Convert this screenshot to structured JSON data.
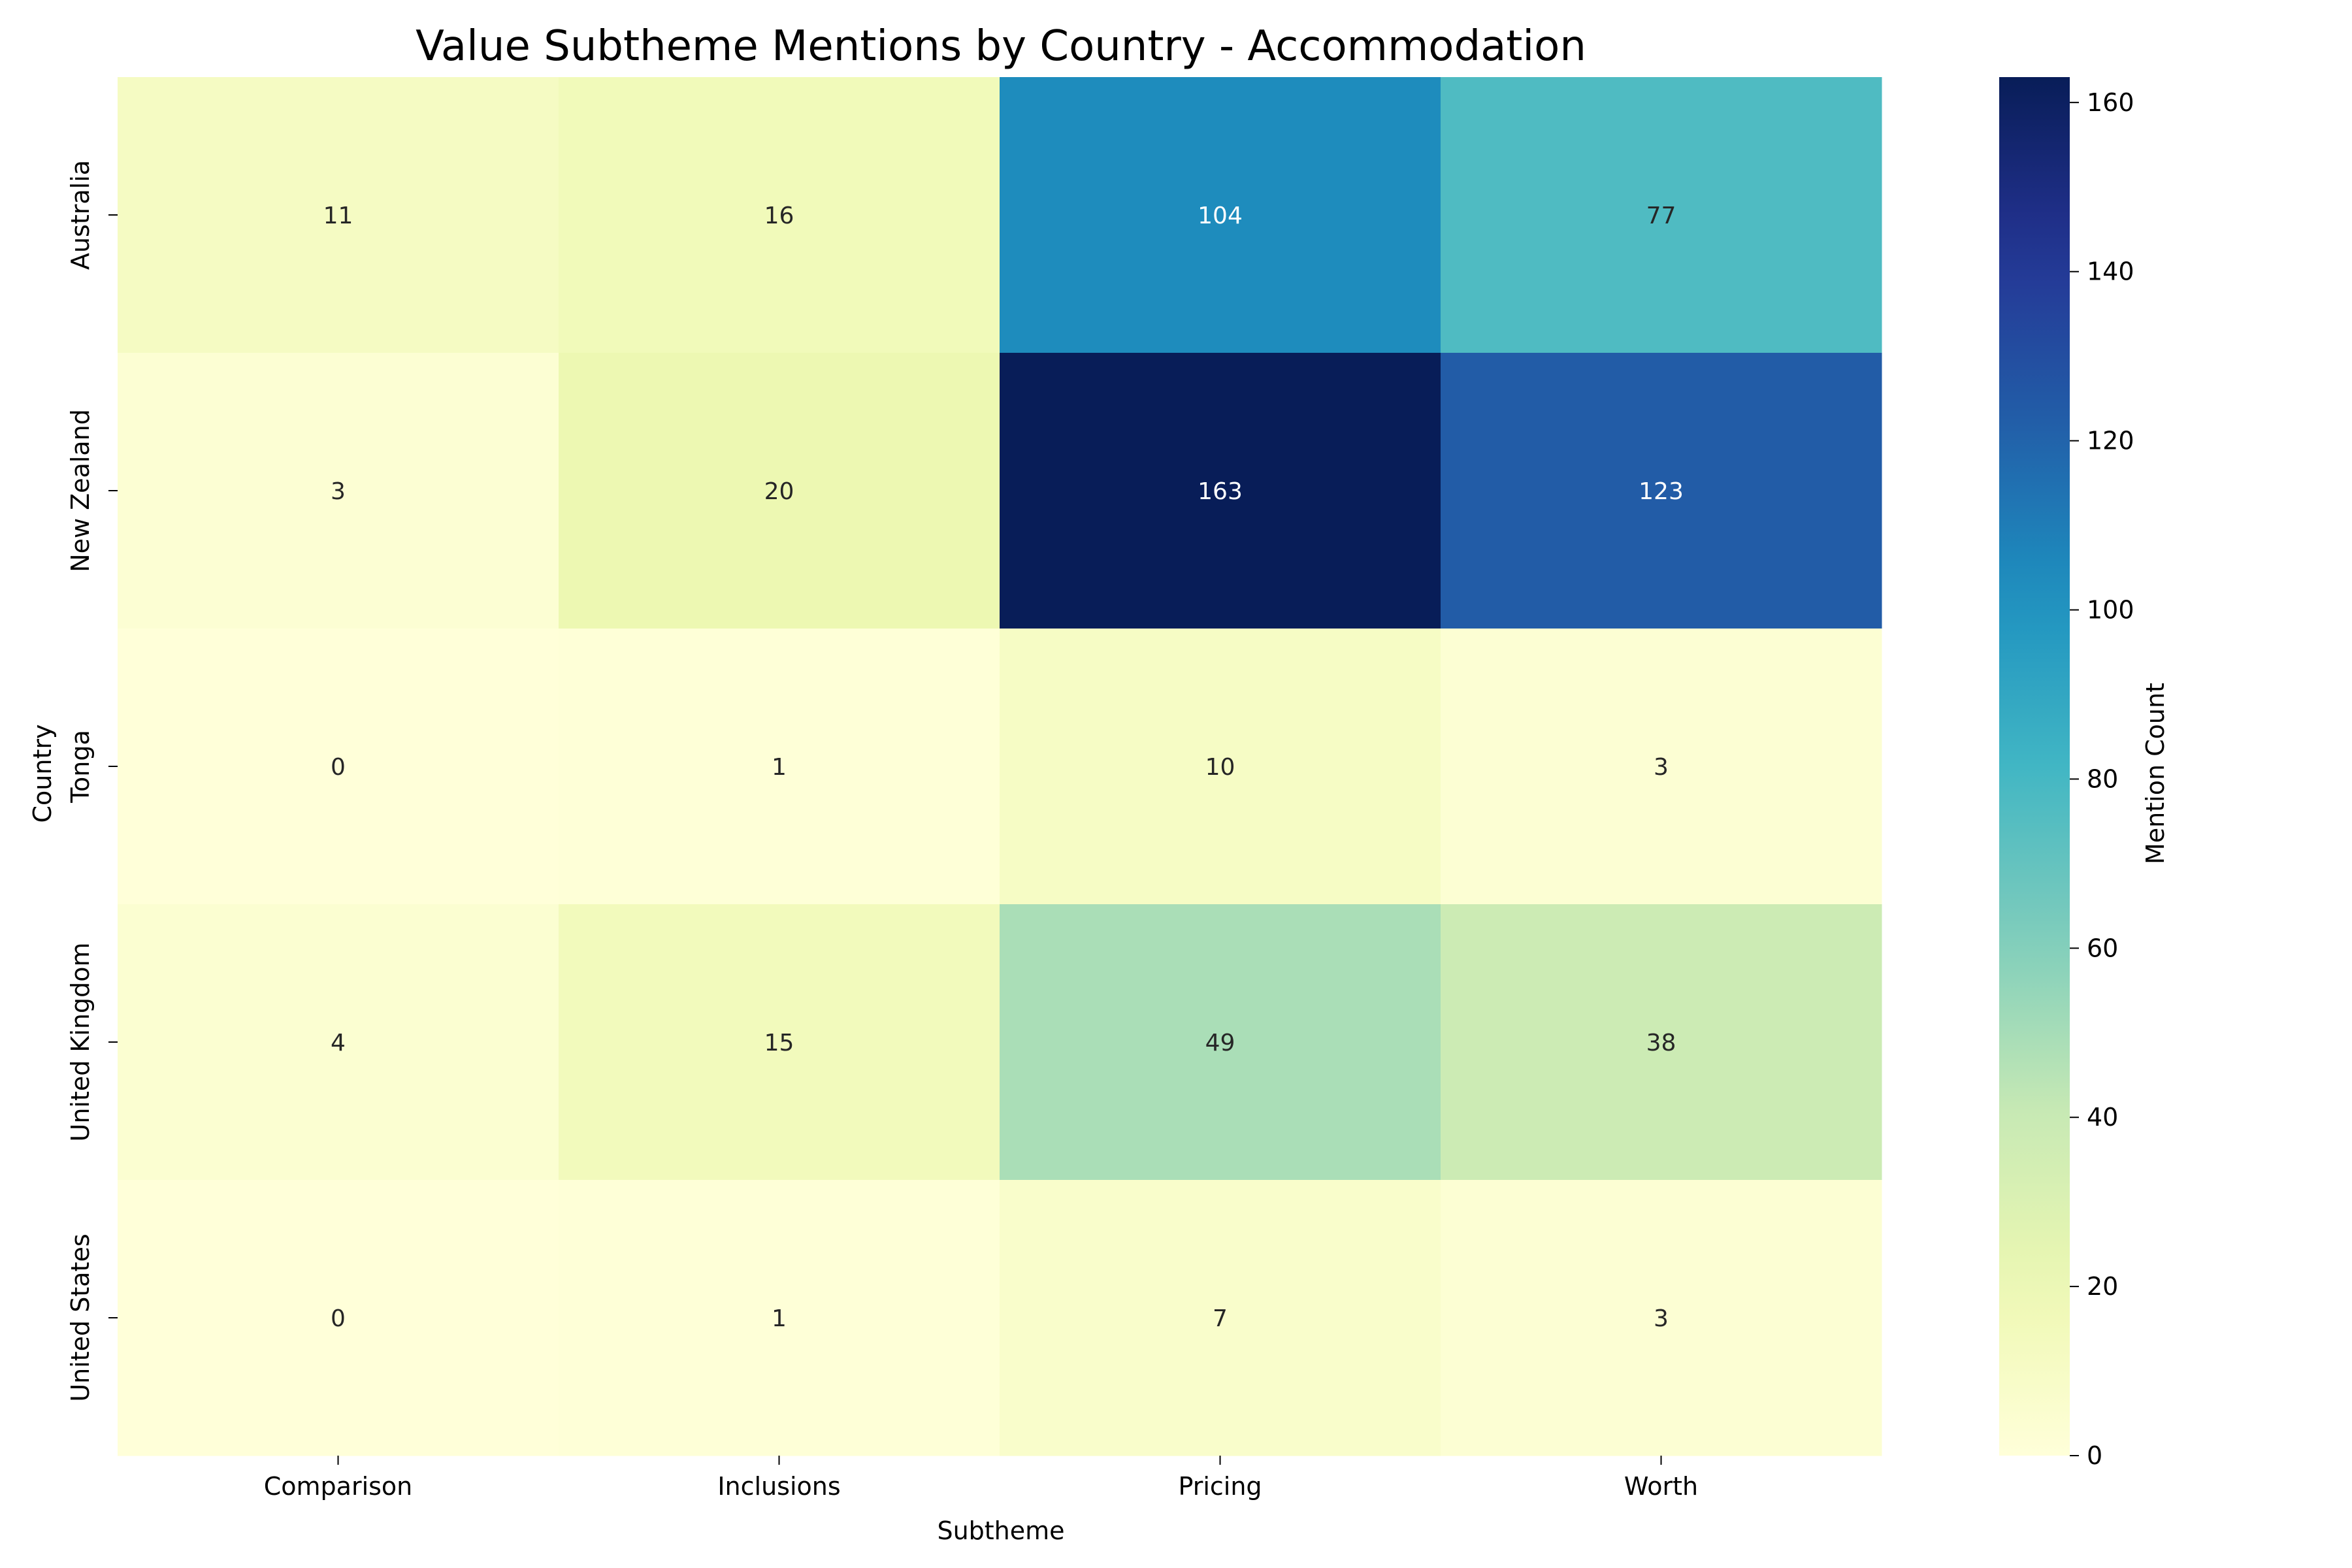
{
  "chart_data": {
    "type": "heatmap",
    "title": "Value Subtheme Mentions by Country - Accommodation",
    "xlabel": "Subtheme",
    "ylabel": "Country",
    "x_categories": [
      "Comparison",
      "Inclusions",
      "Pricing",
      "Worth"
    ],
    "y_categories": [
      "Australia",
      "New Zealand",
      "Tonga",
      "United Kingdom",
      "United States"
    ],
    "values": [
      [
        11,
        16,
        104,
        77
      ],
      [
        3,
        20,
        163,
        123
      ],
      [
        0,
        1,
        10,
        3
      ],
      [
        4,
        15,
        49,
        38
      ],
      [
        0,
        1,
        7,
        3
      ]
    ],
    "colorbar": {
      "label": "Mention Count",
      "range": [
        0,
        163
      ],
      "ticks": [
        0,
        20,
        40,
        60,
        80,
        100,
        120,
        140,
        160
      ],
      "colormap": "YlGnBu"
    },
    "grid": false,
    "legend": "colorbar-right"
  }
}
